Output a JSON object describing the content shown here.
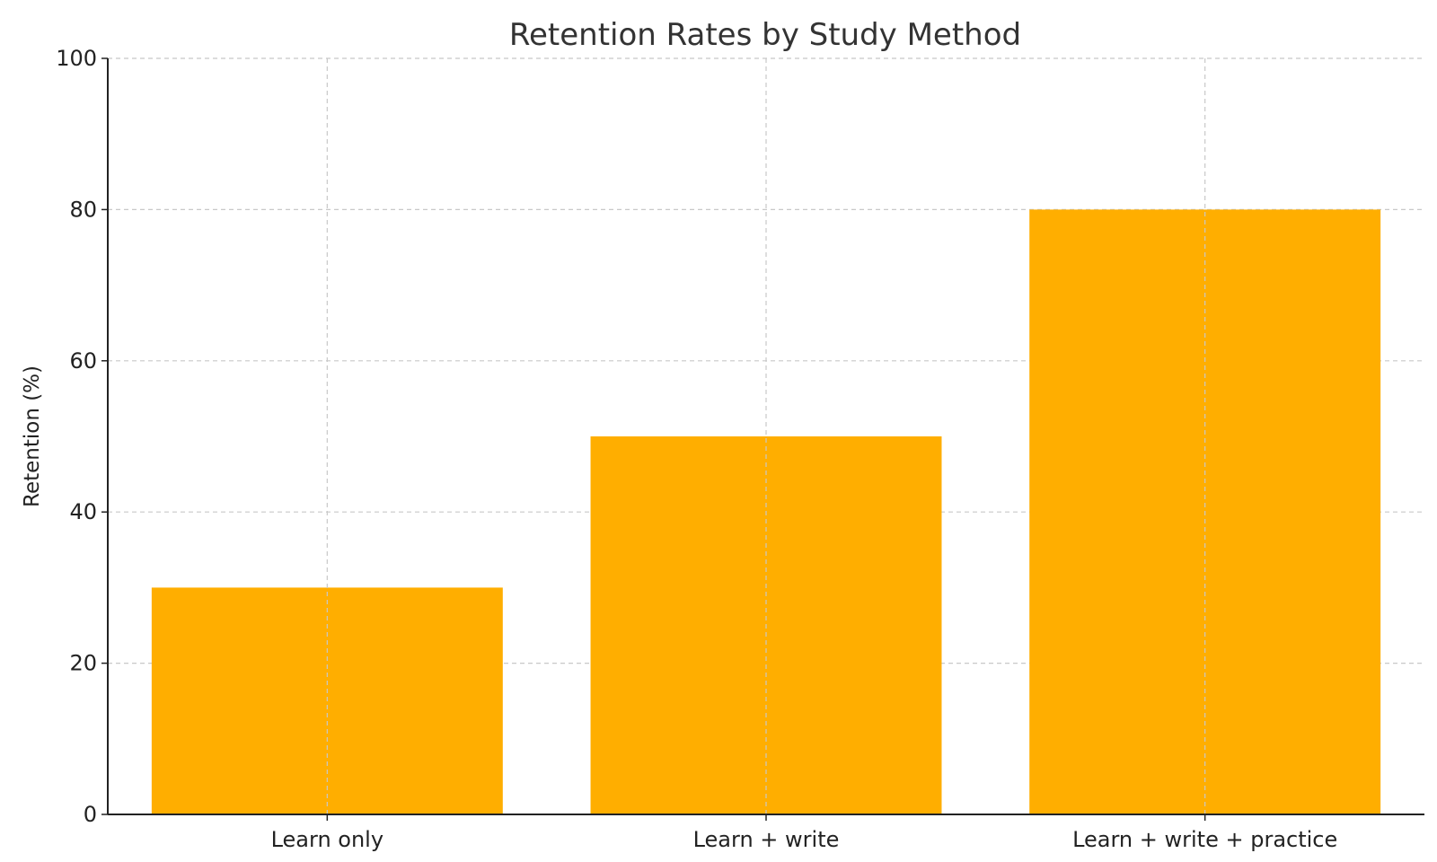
{
  "chart_data": {
    "type": "bar",
    "title": "Retention Rates by Study Method",
    "xlabel": "",
    "ylabel": "Retention (%)",
    "categories": [
      "Learn only",
      "Learn + write",
      "Learn + write + practice"
    ],
    "values": [
      30,
      50,
      80
    ],
    "ylim": [
      0,
      100
    ],
    "yticks": [
      0,
      20,
      40,
      60,
      80,
      100
    ],
    "ytick_labels": [
      "0",
      "20",
      "40",
      "60",
      "80",
      "100"
    ],
    "bar_color": "#FFAE00",
    "grid": true,
    "grid_style": "dashed",
    "legend": "none"
  }
}
